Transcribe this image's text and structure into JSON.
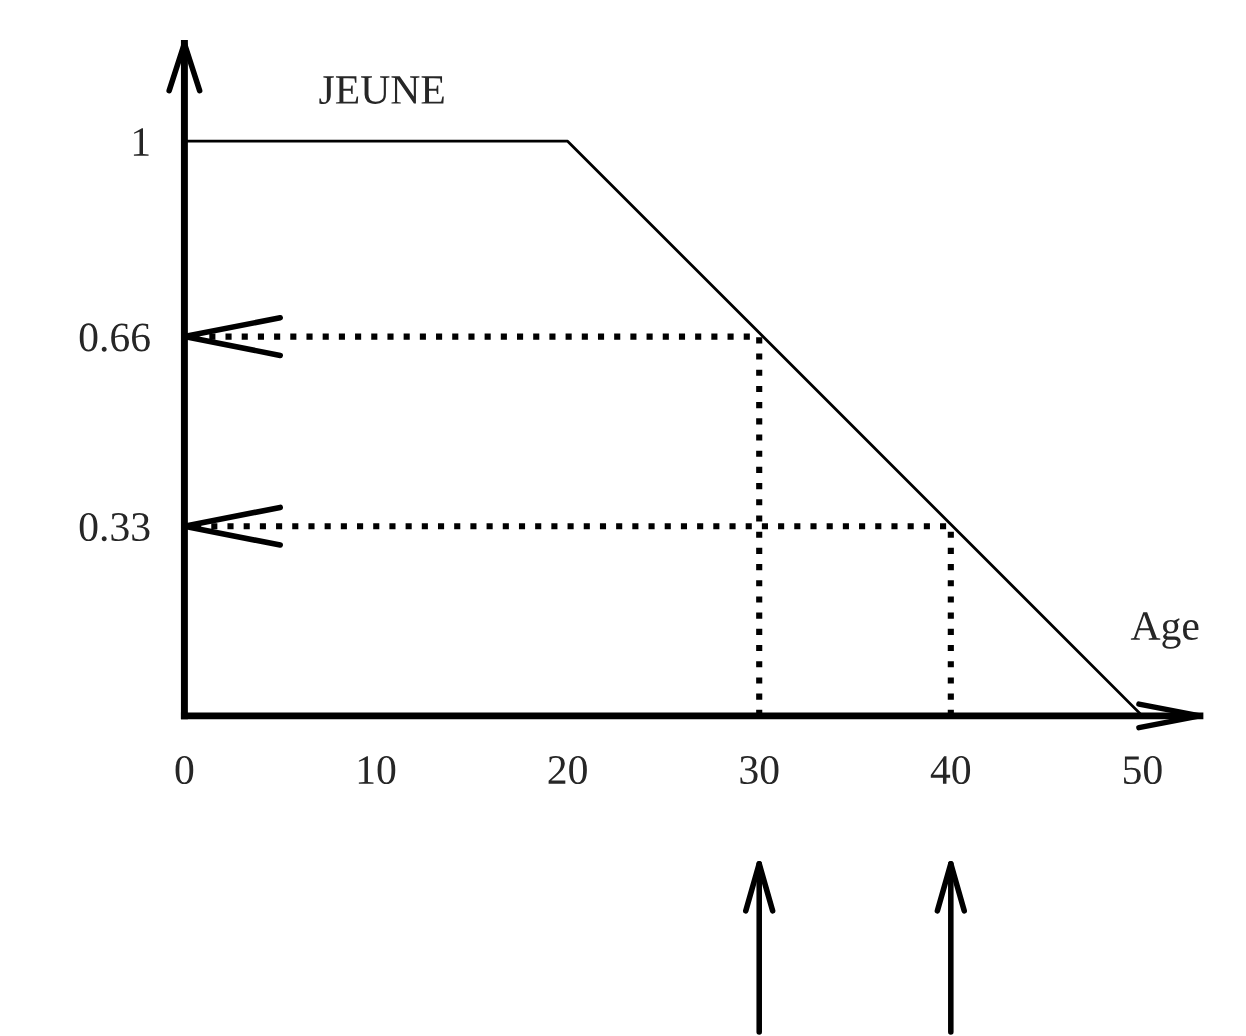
{
  "chart_data": {
    "type": "line",
    "xlabel": "Age",
    "x": [
      0,
      20,
      50
    ],
    "series": [
      {
        "name": "JEUNE",
        "color": "#000000",
        "values": [
          1,
          1,
          0
        ]
      },
      {
        "x": [
          30,
          30,
          0
        ],
        "values": [
          0,
          0.66,
          0.66
        ],
        "color": "#000000",
        "line_style": "dotted"
      },
      {
        "x": [
          40,
          40,
          0
        ],
        "values": [
          0,
          0.33,
          0.33
        ],
        "color": "#000000",
        "line_style": "dotted"
      }
    ],
    "xlim": [
      0,
      53
    ],
    "ylim": [
      0,
      1.17
    ],
    "xticks": [
      0,
      10,
      20,
      30,
      40,
      50
    ],
    "yticks": [
      0.33,
      0.66,
      1
    ],
    "line_style": "solid",
    "marker": "none",
    "grid": false,
    "legend": false
  }
}
